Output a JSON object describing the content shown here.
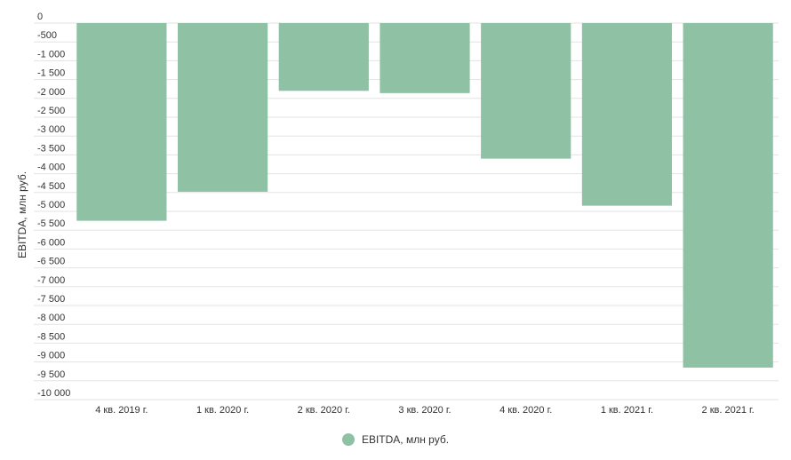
{
  "chart_data": {
    "type": "bar",
    "title": "",
    "xlabel": "",
    "ylabel": "EBITDA, млн руб.",
    "categories": [
      "4 кв. 2019 г.",
      "1 кв. 2020 г.",
      "2 кв. 2020 г.",
      "3 кв. 2020 г.",
      "4 кв. 2020 г.",
      "1 кв. 2021 г.",
      "2 кв. 2021 г."
    ],
    "series": [
      {
        "name": "EBITDA, млн руб.",
        "values": [
          -5250,
          -4480,
          -1800,
          -1860,
          -3600,
          -4850,
          -9150
        ],
        "color": "#8fc1a5"
      }
    ],
    "ylim": [
      -10000,
      0
    ],
    "yticks": [
      0,
      -500,
      -1000,
      -1500,
      -2000,
      -2500,
      -3000,
      -3500,
      -4000,
      -4500,
      -5000,
      -5500,
      -6000,
      -6500,
      -7000,
      -7500,
      -8000,
      -8500,
      -9000,
      -9500,
      -10000
    ],
    "ytick_labels": [
      "0",
      "-500",
      "-1 000",
      "-1 500",
      "-2 000",
      "-2 500",
      "-3 000",
      "-3 500",
      "-4 000",
      "-4 500",
      "-5 000",
      "-5 500",
      "-6 000",
      "-6 500",
      "-7 000",
      "-7 500",
      "-8 000",
      "-8 500",
      "-9 000",
      "-9 500",
      "-10 000"
    ],
    "grid": true,
    "legend_position": "bottom-center"
  }
}
